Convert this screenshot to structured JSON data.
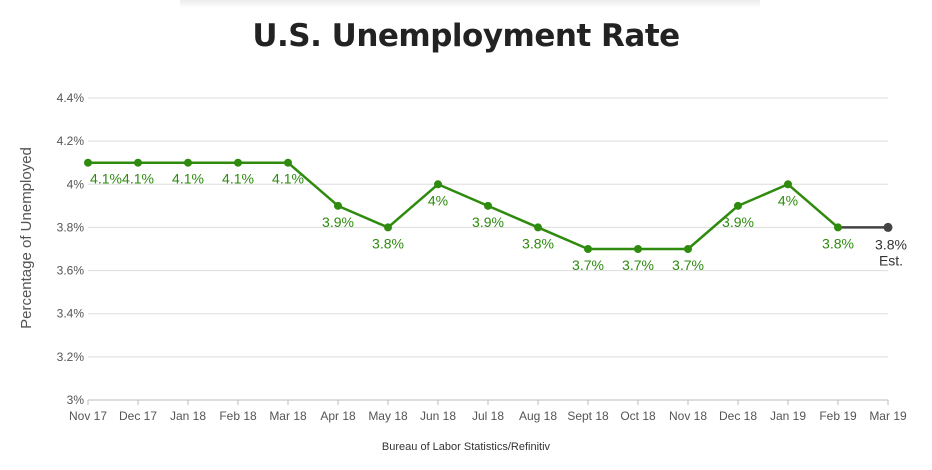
{
  "chart_data": {
    "type": "line",
    "title": "U.S. Unemployment Rate",
    "ylabel": "Percentage of Unemployed",
    "source": "Bureau of Labor Statistics/Refinitiv",
    "categories": [
      "Nov 17",
      "Dec 17",
      "Jan 18",
      "Feb 18",
      "Mar 18",
      "Apr 18",
      "May 18",
      "Jun 18",
      "Jul 18",
      "Aug 18",
      "Sept 18",
      "Oct 18",
      "Nov 18",
      "Dec 18",
      "Jan 19",
      "Feb 19",
      "Mar 19"
    ],
    "values": [
      4.1,
      4.1,
      4.1,
      4.1,
      4.1,
      3.9,
      3.8,
      4.0,
      3.9,
      3.8,
      3.7,
      3.7,
      3.7,
      3.9,
      4.0,
      3.8,
      3.8
    ],
    "data_labels": [
      "4.1%",
      "4.1%",
      "4.1%",
      "4.1%",
      "4.1%",
      "3.9%",
      "3.8%",
      "4%",
      "3.9%",
      "3.8%",
      "3.7%",
      "3.7%",
      "3.7%",
      "3.9%",
      "4%",
      "3.8%",
      "3.8%"
    ],
    "estimate_note": "Est.",
    "estimated_index": 16,
    "ylim": [
      3.0,
      4.4
    ],
    "yticks": [
      3.0,
      3.2,
      3.4,
      3.6,
      3.8,
      4.0,
      4.2,
      4.4
    ],
    "ytick_labels": [
      "3%",
      "3.2%",
      "3.4%",
      "3.6%",
      "3.8%",
      "4%",
      "4.2%",
      "4.4%"
    ],
    "grid": true,
    "colors": {
      "line": "#2e8b0e",
      "estimate": "#444444",
      "grid": "#dddddd",
      "label": "#2e8b0e",
      "estimate_label": "#333333"
    }
  }
}
